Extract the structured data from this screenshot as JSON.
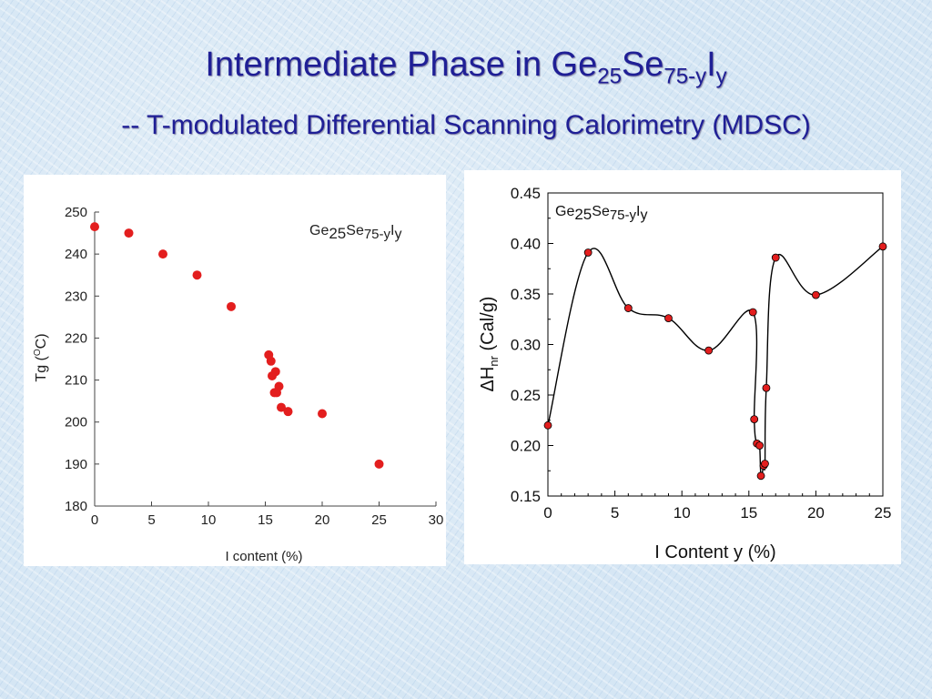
{
  "slide": {
    "title": {
      "main": "Intermediate Phase in Ge",
      "s1": "25",
      "mid": "Se",
      "s2": "75-y",
      "el": "I",
      "s3": "y"
    },
    "subtitle": "-- T-modulated Differential Scanning Calorimetry (MDSC)"
  },
  "chart_data": [
    {
      "type": "scatter",
      "xlabel": "I content (%)",
      "ylabel": {
        "base": "Tg (",
        "sup": "O",
        "end": "C)"
      },
      "legend": {
        "a": "Ge",
        "b": "25",
        "c": "Se",
        "d": "75-y",
        "e": "I",
        "f": "y"
      },
      "xlim": [
        0,
        30
      ],
      "ylim": [
        180,
        250
      ],
      "xticks": [
        0,
        5,
        10,
        15,
        20,
        25,
        30
      ],
      "yticks": [
        180,
        190,
        200,
        210,
        220,
        230,
        240,
        250
      ],
      "color": "#e31e1e",
      "points": [
        {
          "x": 0,
          "y": 246.5
        },
        {
          "x": 3,
          "y": 245
        },
        {
          "x": 6,
          "y": 240
        },
        {
          "x": 9,
          "y": 235
        },
        {
          "x": 12,
          "y": 227.5
        },
        {
          "x": 15.3,
          "y": 216
        },
        {
          "x": 15.5,
          "y": 214.5
        },
        {
          "x": 15.9,
          "y": 212
        },
        {
          "x": 15.6,
          "y": 211
        },
        {
          "x": 16.2,
          "y": 208.5
        },
        {
          "x": 16,
          "y": 207
        },
        {
          "x": 15.8,
          "y": 207
        },
        {
          "x": 16.4,
          "y": 203.5
        },
        {
          "x": 17,
          "y": 202.5
        },
        {
          "x": 20,
          "y": 202
        },
        {
          "x": 25,
          "y": 190
        }
      ]
    },
    {
      "type": "line",
      "xlabel": "I Content y (%)",
      "ylabel": {
        "delta": "Δ",
        "h": "H",
        "sub": "nr",
        "unit": " (Cal/g)"
      },
      "legend": {
        "a": "Ge",
        "b": "25",
        "c": "Se",
        "d": "75-y",
        "e": "I",
        "f": "y"
      },
      "xlim": [
        0,
        25
      ],
      "ylim": [
        0.15,
        0.45
      ],
      "xticks": [
        0,
        5,
        10,
        15,
        20,
        25
      ],
      "yticks": [
        "0.15",
        "0.20",
        "0.25",
        "0.30",
        "0.35",
        "0.40",
        "0.45"
      ],
      "color": "#e31e1e",
      "points": [
        {
          "x": 0,
          "y": 0.22
        },
        {
          "x": 3,
          "y": 0.391
        },
        {
          "x": 6,
          "y": 0.336
        },
        {
          "x": 9,
          "y": 0.326
        },
        {
          "x": 12,
          "y": 0.294
        },
        {
          "x": 15.3,
          "y": 0.332
        },
        {
          "x": 15.4,
          "y": 0.226
        },
        {
          "x": 15.6,
          "y": 0.202
        },
        {
          "x": 15.8,
          "y": 0.2
        },
        {
          "x": 15.9,
          "y": 0.17
        },
        {
          "x": 16.1,
          "y": 0.18
        },
        {
          "x": 16.2,
          "y": 0.182
        },
        {
          "x": 16.3,
          "y": 0.257
        },
        {
          "x": 17,
          "y": 0.386
        },
        {
          "x": 20,
          "y": 0.349
        },
        {
          "x": 25,
          "y": 0.397
        }
      ]
    }
  ]
}
